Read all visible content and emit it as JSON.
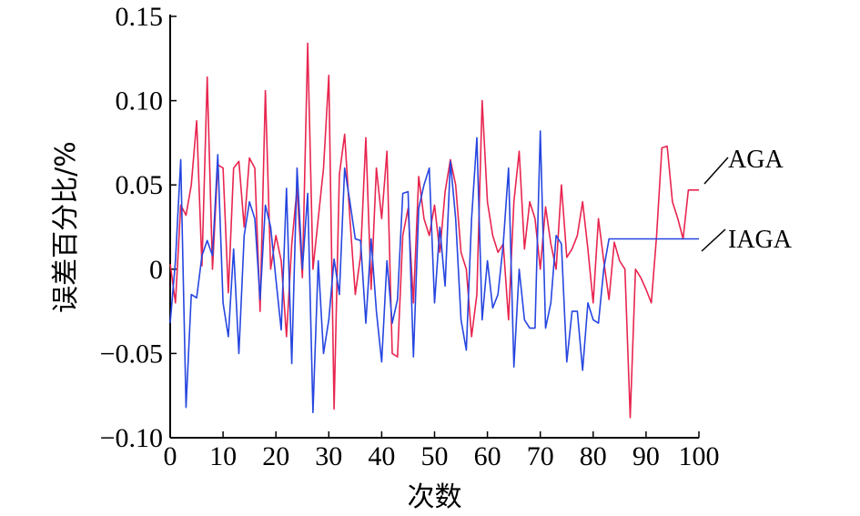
{
  "chart_data": {
    "type": "line",
    "xlabel": "次数",
    "ylabel": "误差百分比/%",
    "xlim": [
      0,
      100
    ],
    "ylim": [
      -0.1,
      0.15
    ],
    "x_ticks": [
      0,
      10,
      20,
      30,
      40,
      50,
      60,
      70,
      80,
      90,
      100
    ],
    "x_tick_labels": [
      "0",
      "10",
      "20",
      "30",
      "40",
      "50",
      "60",
      "70",
      "80",
      "90",
      "100"
    ],
    "y_ticks": [
      -0.1,
      -0.05,
      0,
      0.05,
      0.1,
      0.15
    ],
    "y_tick_labels": [
      "−0.10",
      "−0.05",
      "0",
      "0.05",
      "0.10",
      "0.15"
    ],
    "grid": false,
    "series": [
      {
        "name": "AGA",
        "color": "#e8254f",
        "x": [
          0,
          1,
          2,
          3,
          4,
          5,
          6,
          7,
          8,
          9,
          10,
          11,
          12,
          13,
          14,
          15,
          16,
          17,
          18,
          19,
          20,
          21,
          22,
          23,
          24,
          25,
          26,
          27,
          28,
          29,
          30,
          31,
          32,
          33,
          34,
          35,
          36,
          37,
          38,
          39,
          40,
          41,
          42,
          43,
          44,
          45,
          46,
          47,
          48,
          49,
          50,
          51,
          52,
          53,
          54,
          55,
          56,
          57,
          58,
          59,
          60,
          61,
          62,
          63,
          64,
          65,
          66,
          67,
          68,
          69,
          70,
          71,
          72,
          73,
          74,
          75,
          76,
          77,
          78,
          79,
          80,
          81,
          82,
          83,
          84,
          85,
          86,
          87,
          88,
          89,
          90,
          91,
          92,
          93,
          94,
          95,
          96,
          97,
          98,
          99,
          100
        ],
        "values": [
          0.003,
          -0.02,
          0.038,
          0.032,
          0.05,
          0.088,
          0.002,
          0.114,
          0.0,
          0.062,
          0.06,
          -0.014,
          0.06,
          0.064,
          0.025,
          0.066,
          0.06,
          -0.025,
          0.106,
          0.0,
          0.02,
          0.005,
          -0.04,
          0.015,
          0.048,
          -0.005,
          0.134,
          0.0,
          0.03,
          0.06,
          0.115,
          -0.083,
          0.056,
          0.08,
          0.03,
          -0.015,
          0.008,
          0.078,
          -0.012,
          0.06,
          0.03,
          0.07,
          -0.05,
          -0.052,
          0.02,
          0.036,
          -0.02,
          0.055,
          0.03,
          0.02,
          0.038,
          0.01,
          0.046,
          0.065,
          0.05,
          0.01,
          0.0,
          -0.04,
          -0.015,
          0.1,
          0.04,
          0.02,
          0.01,
          0.015,
          -0.03,
          0.04,
          0.07,
          0.012,
          0.04,
          0.03,
          0.0,
          0.037,
          0.015,
          0.0,
          0.05,
          0.007,
          0.012,
          0.02,
          0.04,
          0.012,
          -0.02,
          0.03,
          0.005,
          -0.018,
          0.016,
          0.005,
          0.0,
          -0.088,
          0.0,
          -0.005,
          -0.012,
          -0.02,
          0.02,
          0.072,
          0.073,
          0.04,
          0.03,
          0.018,
          0.047,
          0.047,
          0.047
        ]
      },
      {
        "name": "IAGA",
        "color": "#2646e0",
        "x": [
          0,
          1,
          2,
          3,
          4,
          5,
          6,
          7,
          8,
          9,
          10,
          11,
          12,
          13,
          14,
          15,
          16,
          17,
          18,
          19,
          20,
          21,
          22,
          23,
          24,
          25,
          26,
          27,
          28,
          29,
          30,
          31,
          32,
          33,
          34,
          35,
          36,
          37,
          38,
          39,
          40,
          41,
          42,
          43,
          44,
          45,
          46,
          47,
          48,
          49,
          50,
          51,
          52,
          53,
          54,
          55,
          56,
          57,
          58,
          59,
          60,
          61,
          62,
          63,
          64,
          65,
          66,
          67,
          68,
          69,
          70,
          71,
          72,
          73,
          74,
          75,
          76,
          77,
          78,
          79,
          80,
          81,
          82,
          83,
          84,
          85,
          86,
          87,
          88,
          89,
          90,
          91,
          92,
          93,
          94,
          95,
          96,
          97,
          98,
          99,
          100
        ],
        "values": [
          -0.032,
          0.005,
          0.065,
          -0.082,
          -0.015,
          -0.017,
          0.008,
          0.017,
          0.008,
          0.068,
          -0.02,
          -0.04,
          0.012,
          -0.05,
          0.02,
          0.04,
          0.03,
          -0.018,
          0.038,
          0.025,
          -0.006,
          -0.036,
          0.048,
          -0.056,
          0.06,
          0.0,
          0.045,
          -0.085,
          0.005,
          -0.05,
          -0.03,
          0.006,
          -0.015,
          0.06,
          0.04,
          0.018,
          0.017,
          -0.032,
          0.018,
          -0.025,
          -0.055,
          0.005,
          -0.032,
          -0.018,
          0.045,
          0.046,
          -0.052,
          0.036,
          0.05,
          0.06,
          -0.02,
          0.025,
          -0.01,
          0.064,
          0.03,
          -0.03,
          -0.048,
          0.03,
          0.078,
          -0.03,
          0.005,
          -0.023,
          -0.015,
          0.015,
          0.06,
          -0.058,
          0.0,
          -0.03,
          -0.035,
          -0.035,
          0.082,
          -0.035,
          -0.02,
          0.02,
          0.015,
          -0.055,
          -0.025,
          -0.025,
          -0.06,
          -0.02,
          -0.03,
          -0.032,
          0.0,
          0.018,
          0.018,
          0.018,
          0.018,
          0.018,
          0.018,
          0.018,
          0.018,
          0.018,
          0.018,
          0.018,
          0.018,
          0.018,
          0.018,
          0.018,
          0.018,
          0.018,
          0.018
        ]
      }
    ]
  }
}
